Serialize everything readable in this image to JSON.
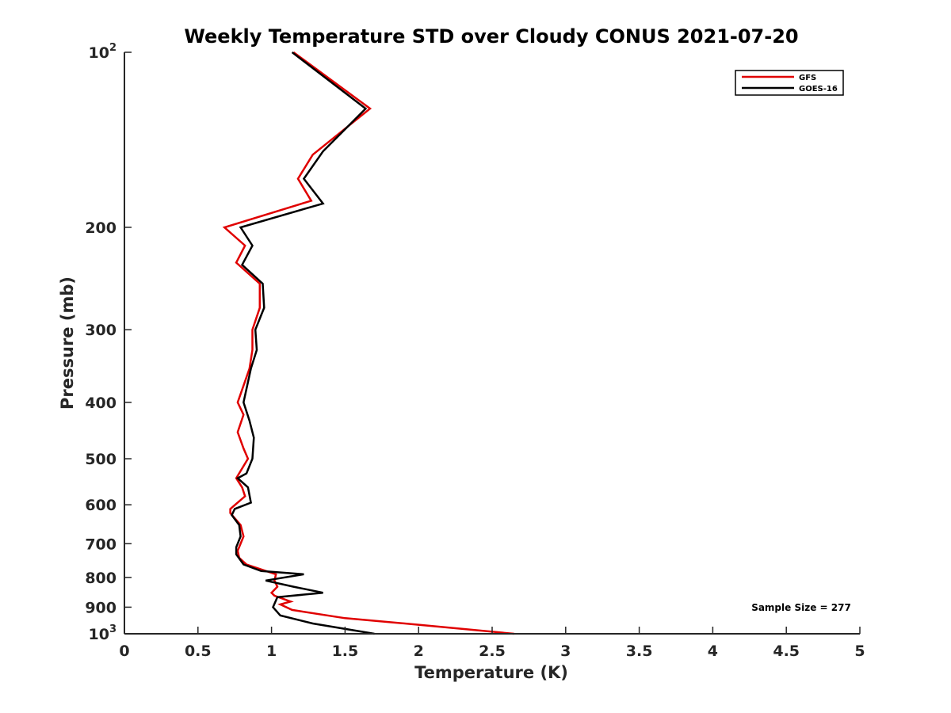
{
  "chart_data": {
    "type": "line",
    "title": "Weekly Temperature STD over Cloudy CONUS 2021-07-20",
    "xlabel": "Temperature (K)",
    "ylabel": "Pressure (mb)",
    "xlim": [
      0,
      5
    ],
    "ylim": [
      100,
      1000
    ],
    "y_scale": "log",
    "y_reversed": true,
    "grid": false,
    "legend_position": "top-right",
    "x_ticks": [
      {
        "value": 0,
        "label": "0"
      },
      {
        "value": 0.5,
        "label": "0.5"
      },
      {
        "value": 1,
        "label": "1"
      },
      {
        "value": 1.5,
        "label": "1.5"
      },
      {
        "value": 2,
        "label": "2"
      },
      {
        "value": 2.5,
        "label": "2.5"
      },
      {
        "value": 3,
        "label": "3"
      },
      {
        "value": 3.5,
        "label": "3.5"
      },
      {
        "value": 4,
        "label": "4"
      },
      {
        "value": 4.5,
        "label": "4.5"
      },
      {
        "value": 5,
        "label": "5"
      }
    ],
    "y_ticks": [
      {
        "value": 100,
        "label": "10",
        "sup": "2"
      },
      {
        "value": 200,
        "label": "200"
      },
      {
        "value": 300,
        "label": "300"
      },
      {
        "value": 400,
        "label": "400"
      },
      {
        "value": 500,
        "label": "500"
      },
      {
        "value": 600,
        "label": "600"
      },
      {
        "value": 700,
        "label": "700"
      },
      {
        "value": 800,
        "label": "800"
      },
      {
        "value": 900,
        "label": "900"
      },
      {
        "value": 1000,
        "label": "10",
        "sup": "3"
      }
    ],
    "series": [
      {
        "name": "GFS",
        "color": "#e00000",
        "points": [
          [
            1.15,
            100
          ],
          [
            1.67,
            125
          ],
          [
            1.28,
            150
          ],
          [
            1.18,
            165
          ],
          [
            1.27,
            180
          ],
          [
            0.68,
            200
          ],
          [
            0.82,
            215
          ],
          [
            0.76,
            230
          ],
          [
            0.92,
            250
          ],
          [
            0.92,
            275
          ],
          [
            0.87,
            300
          ],
          [
            0.87,
            325
          ],
          [
            0.85,
            350
          ],
          [
            0.77,
            400
          ],
          [
            0.81,
            420
          ],
          [
            0.77,
            450
          ],
          [
            0.81,
            480
          ],
          [
            0.84,
            500
          ],
          [
            0.76,
            540
          ],
          [
            0.8,
            560
          ],
          [
            0.82,
            580
          ],
          [
            0.72,
            610
          ],
          [
            0.72,
            620
          ],
          [
            0.79,
            650
          ],
          [
            0.81,
            680
          ],
          [
            0.77,
            720
          ],
          [
            0.78,
            740
          ],
          [
            0.83,
            760
          ],
          [
            1.03,
            790
          ],
          [
            1.02,
            810
          ],
          [
            1.04,
            830
          ],
          [
            1.0,
            850
          ],
          [
            1.02,
            860
          ],
          [
            1.13,
            880
          ],
          [
            1.06,
            890
          ],
          [
            1.14,
            910
          ],
          [
            1.5,
            940
          ],
          [
            2.0,
            965
          ],
          [
            2.65,
            1000
          ]
        ]
      },
      {
        "name": "GOES-16",
        "color": "#000000",
        "points": [
          [
            1.14,
            100
          ],
          [
            1.64,
            125
          ],
          [
            1.35,
            148
          ],
          [
            1.22,
            165
          ],
          [
            1.35,
            182
          ],
          [
            0.79,
            200
          ],
          [
            0.87,
            215
          ],
          [
            0.8,
            232
          ],
          [
            0.94,
            250
          ],
          [
            0.95,
            275
          ],
          [
            0.89,
            300
          ],
          [
            0.9,
            325
          ],
          [
            0.86,
            350
          ],
          [
            0.81,
            400
          ],
          [
            0.85,
            430
          ],
          [
            0.88,
            460
          ],
          [
            0.87,
            500
          ],
          [
            0.83,
            530
          ],
          [
            0.77,
            540
          ],
          [
            0.84,
            560
          ],
          [
            0.86,
            595
          ],
          [
            0.75,
            610
          ],
          [
            0.73,
            625
          ],
          [
            0.78,
            650
          ],
          [
            0.79,
            680
          ],
          [
            0.76,
            710
          ],
          [
            0.76,
            730
          ],
          [
            0.81,
            760
          ],
          [
            0.93,
            780
          ],
          [
            1.22,
            790
          ],
          [
            0.96,
            810
          ],
          [
            1.15,
            830
          ],
          [
            1.35,
            850
          ],
          [
            1.04,
            865
          ],
          [
            1.01,
            900
          ],
          [
            1.06,
            930
          ],
          [
            1.28,
            960
          ],
          [
            1.7,
            1000
          ]
        ]
      }
    ],
    "annotations": [
      {
        "text": "Sample Size = 277"
      }
    ]
  }
}
